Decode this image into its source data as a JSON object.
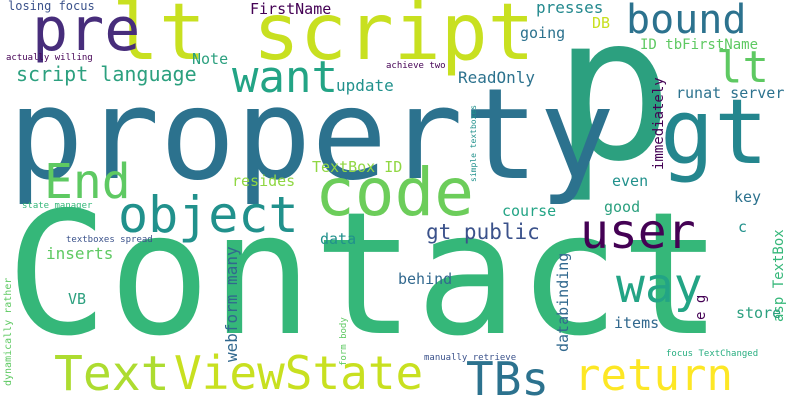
{
  "colors": {
    "background": "#ffffff",
    "dark_purple": "#440154",
    "indigo": "#472d7b",
    "slate": "#3b528b",
    "blue_teal": "#2c728e",
    "teal": "#21918c",
    "sea_green": "#28ae80",
    "green": "#35b779",
    "leaf_green": "#5ec962",
    "lime": "#addc30",
    "yellow": "#fde725"
  },
  "words": [
    {
      "text": "Contact",
      "color": "#35b779"
    },
    {
      "text": "p",
      "color": "#2ca07f"
    },
    {
      "text": "property",
      "color": "#2c728e"
    },
    {
      "text": "lt script",
      "color": "#c8e020"
    },
    {
      "text": "gt",
      "color": "#24868e"
    },
    {
      "text": "code",
      "color": "#6ccd5a"
    },
    {
      "text": "pre",
      "color": "#472d7b"
    },
    {
      "text": "bound",
      "color": "#2c728e"
    },
    {
      "text": "lt",
      "color": "#5ec962"
    },
    {
      "text": "want",
      "color": "#23a485"
    },
    {
      "text": "object",
      "color": "#21918c"
    },
    {
      "text": "user",
      "color": "#440154"
    },
    {
      "text": "End",
      "color": "#5ec962"
    },
    {
      "text": "way",
      "color": "#23a485"
    },
    {
      "text": "Text",
      "color": "#addc30"
    },
    {
      "text": "ViewState",
      "color": "#c8e020"
    },
    {
      "text": "TBs",
      "color": "#2c728e"
    },
    {
      "text": "return",
      "color": "#fde725"
    },
    {
      "text": "script language",
      "color": "#2ca07f"
    },
    {
      "text": "gt public",
      "color": "#3b528b"
    },
    {
      "text": "FirstName",
      "color": "#440154"
    },
    {
      "text": "presses",
      "color": "#23898e"
    },
    {
      "text": "DB",
      "color": "#c8e020"
    },
    {
      "text": "going",
      "color": "#2c728e"
    },
    {
      "text": "ID tbFirstName",
      "color": "#5ec962"
    },
    {
      "text": "Note",
      "color": "#2ca07f"
    },
    {
      "text": "update",
      "color": "#21918c"
    },
    {
      "text": "ReadOnly",
      "color": "#2c728e"
    },
    {
      "text": "runat server",
      "color": "#2c728e"
    },
    {
      "text": "immediately",
      "color": "#440154"
    },
    {
      "text": "TextBox ID",
      "color": "#90d743"
    },
    {
      "text": "resides",
      "color": "#90d743"
    },
    {
      "text": "even",
      "color": "#21918c"
    },
    {
      "text": "key",
      "color": "#2c728e"
    },
    {
      "text": "asp TextBox",
      "color": "#35b779"
    },
    {
      "text": "course",
      "color": "#23a485"
    },
    {
      "text": "good",
      "color": "#2ca07f"
    },
    {
      "text": "data",
      "color": "#21918c"
    },
    {
      "text": "c",
      "color": "#21918c"
    },
    {
      "text": "inserts",
      "color": "#5ec962"
    },
    {
      "text": "webform many",
      "color": "#31688e"
    },
    {
      "text": "behind",
      "color": "#31688e"
    },
    {
      "text": "databinding",
      "color": "#31688e"
    },
    {
      "text": "VB",
      "color": "#2ca07f"
    },
    {
      "text": "items",
      "color": "#31688e"
    },
    {
      "text": "e g",
      "color": "#440154"
    },
    {
      "text": "store",
      "color": "#2ca07f"
    },
    {
      "text": "losing focus",
      "color": "#3b528b"
    },
    {
      "text": "actually willing",
      "color": "#440154"
    },
    {
      "text": "achieve two",
      "color": "#440154"
    },
    {
      "text": "simple textboxes",
      "color": "#21918c"
    },
    {
      "text": "state manager",
      "color": "#35b779"
    },
    {
      "text": "textboxes spread",
      "color": "#3b528b"
    },
    {
      "text": "dynamically rather",
      "color": "#5ec962"
    },
    {
      "text": "form body",
      "color": "#5ec962"
    },
    {
      "text": "manually retrieve",
      "color": "#3b528b"
    },
    {
      "text": "focus TextChanged",
      "color": "#28ae80"
    }
  ]
}
